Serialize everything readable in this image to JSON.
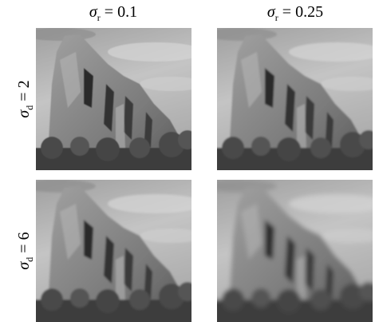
{
  "columns": [
    {
      "symbol": "σ",
      "subscript": "r",
      "value": "= 0.1"
    },
    {
      "symbol": "σ",
      "subscript": "r",
      "value": "= 0.25"
    }
  ],
  "rows": [
    {
      "symbol": "σ",
      "subscript": "d",
      "value": "= 2"
    },
    {
      "symbol": "σ",
      "subscript": "d",
      "value": "= 6"
    }
  ]
}
